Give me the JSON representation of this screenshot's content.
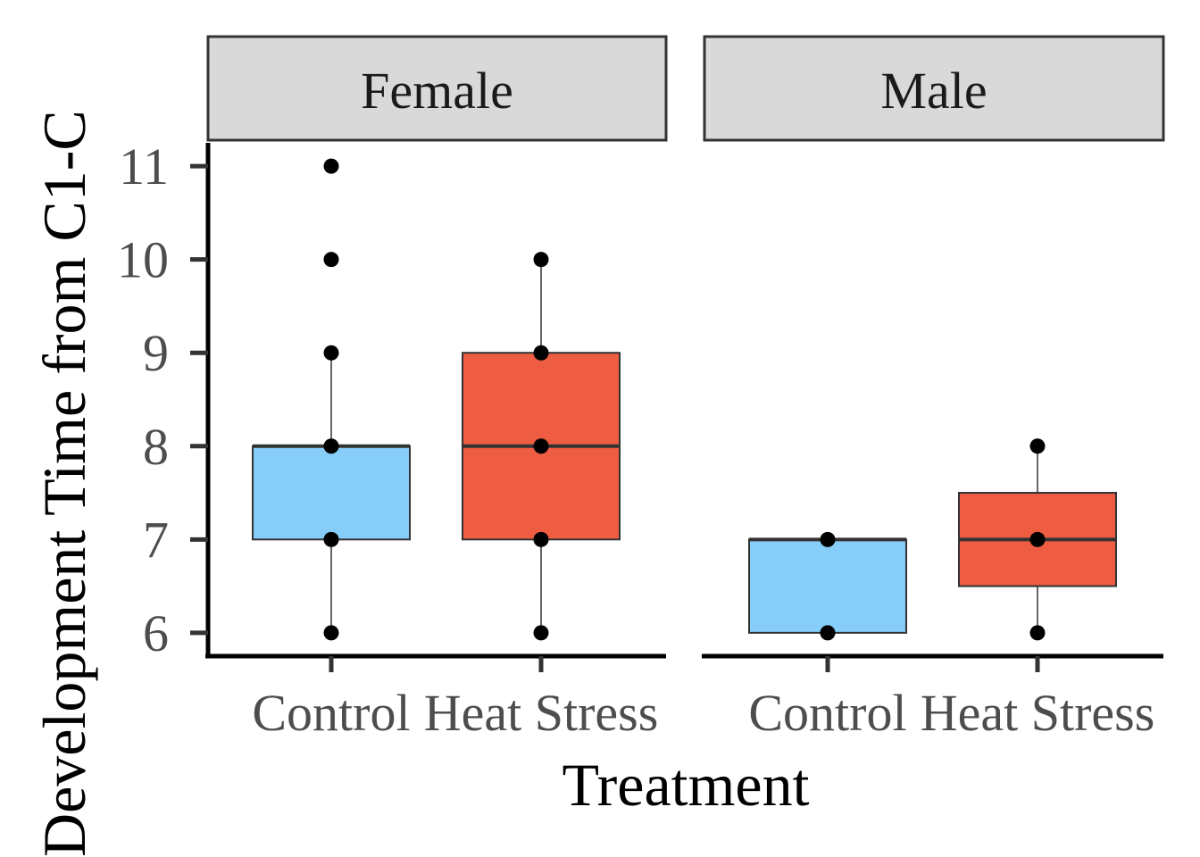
{
  "chart_data": {
    "type": "box",
    "xlabel": "Treatment",
    "ylabel": "Development Time from C1-C",
    "ylim": [
      5.75,
      11.25
    ],
    "yticks": [
      6,
      7,
      8,
      9,
      10,
      11
    ],
    "grid": false,
    "legend": "none",
    "colors": {
      "Control": "#87cdf9",
      "Heat Stress": "#ee5c42"
    },
    "facets": [
      {
        "label": "Female",
        "groups": [
          {
            "category": "Control",
            "q1": 7,
            "median": 8,
            "q3": 8,
            "whisker_low": 6,
            "whisker_high": 9,
            "points": [
              6,
              7,
              8,
              9,
              10,
              11
            ]
          },
          {
            "category": "Heat Stress",
            "q1": 7,
            "median": 8,
            "q3": 9,
            "whisker_low": 6,
            "whisker_high": 10,
            "points": [
              6,
              7,
              8,
              9,
              10
            ]
          }
        ]
      },
      {
        "label": "Male",
        "groups": [
          {
            "category": "Control",
            "q1": 6,
            "median": 7,
            "q3": 7,
            "whisker_low": 6,
            "whisker_high": 7,
            "points": [
              6,
              7
            ]
          },
          {
            "category": "Heat Stress",
            "q1": 6.5,
            "median": 7,
            "q3": 7.5,
            "whisker_low": 6,
            "whisker_high": 8,
            "points": [
              6,
              7,
              8
            ]
          }
        ]
      }
    ]
  }
}
